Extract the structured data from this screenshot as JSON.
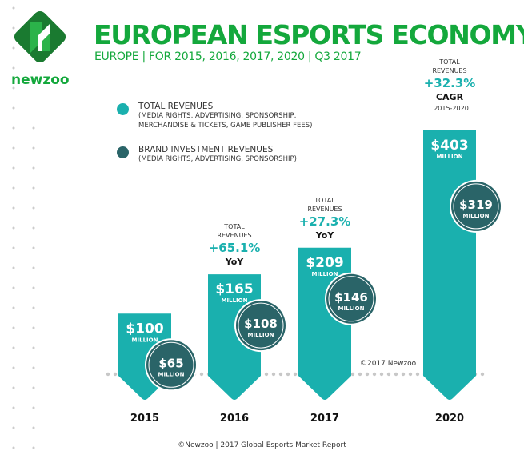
{
  "header": {
    "title": "EUROPEAN ESPORTS ECONOMY",
    "subtitle": "EUROPE | FOR 2015, 2016, 2017, 2020 | Q3 2017",
    "logo_text": "newzoo"
  },
  "legend": [
    {
      "title": "TOTAL REVENUES",
      "sub1": "(MEDIA RIGHTS, ADVERTISING, SPONSORSHIP,",
      "sub2": "MERCHANDISE & TICKETS, GAME PUBLISHER FEES)",
      "color": "#1ab0ae"
    },
    {
      "title": "BRAND INVESTMENT REVENUES",
      "sub1": "(MEDIA RIGHTS, ADVERTISING, SPONSORSHIP)",
      "sub2": "",
      "color": "#2a6468"
    }
  ],
  "chart_data": {
    "type": "bar",
    "title": "EUROPEAN ESPORTS ECONOMY",
    "categories": [
      "2015",
      "2016",
      "2017",
      "2020"
    ],
    "unit": "MILLION",
    "series": [
      {
        "name": "TOTAL REVENUES",
        "values": [
          100,
          165,
          209,
          403
        ],
        "labels": [
          "$100",
          "$165",
          "$209",
          "$403"
        ],
        "color": "#1ab0ae"
      },
      {
        "name": "BRAND INVESTMENT REVENUES",
        "values": [
          65,
          108,
          146,
          319
        ],
        "labels": [
          "$65",
          "$108",
          "$146",
          "$319"
        ],
        "color": "#2a6468"
      }
    ],
    "annotations": [
      null,
      {
        "line1": "TOTAL",
        "line2": "REVENUES",
        "growth": "+65.1%",
        "kind": "YoY",
        "period": ""
      },
      {
        "line1": "TOTAL",
        "line2": "REVENUES",
        "growth": "+27.3%",
        "kind": "YoY",
        "period": ""
      },
      {
        "line1": "TOTAL",
        "line2": "REVENUES",
        "growth": "+32.3%",
        "kind": "CAGR",
        "period": "2015-2020"
      }
    ],
    "grid": false
  },
  "watermark": "©2017 Newzoo",
  "footer": "©Newzoo | 2017 Global Esports Market Report"
}
